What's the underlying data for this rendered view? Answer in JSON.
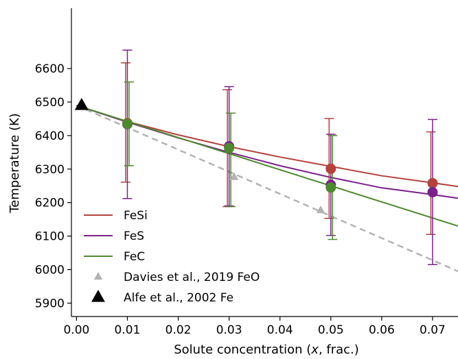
{
  "chart_data": {
    "type": "line",
    "xlabel_prefix": "Solute concentration (",
    "xlabel_var": "x",
    "xlabel_suffix": ", frac.)",
    "ylabel": "Temperature (K)",
    "xlim": [
      -0.001,
      0.075
    ],
    "ylim": [
      5860,
      6780
    ],
    "xticks": [
      0.0,
      0.01,
      0.02,
      0.03,
      0.04,
      0.05,
      0.06,
      0.07
    ],
    "xtick_labels": [
      "0.00",
      "0.01",
      "0.02",
      "0.03",
      "0.04",
      "0.05",
      "0.06",
      "0.07"
    ],
    "yticks": [
      5900,
      6000,
      6100,
      6200,
      6300,
      6400,
      6500,
      6600
    ],
    "ytick_labels": [
      "5900",
      "6000",
      "6100",
      "6200",
      "6300",
      "6400",
      "6500",
      "6600"
    ],
    "grid": false,
    "legend_position": "lower-left",
    "series": [
      {
        "name": "FeSi",
        "color": "#b5413a",
        "fit": [
          [
            0.0,
            6490
          ],
          [
            0.01,
            6442
          ],
          [
            0.02,
            6402
          ],
          [
            0.03,
            6367
          ],
          [
            0.04,
            6336
          ],
          [
            0.05,
            6308
          ],
          [
            0.06,
            6280
          ],
          [
            0.07,
            6259
          ],
          [
            0.075,
            6248
          ]
        ],
        "points": [
          {
            "x": 0.01,
            "y": 6437,
            "lo": 6261,
            "hi": 6617
          },
          {
            "x": 0.03,
            "y": 6365,
            "lo": 6188,
            "hi": 6537
          },
          {
            "x": 0.05,
            "y": 6301,
            "lo": 6153,
            "hi": 6451
          },
          {
            "x": 0.07,
            "y": 6258,
            "lo": 6105,
            "hi": 6411
          }
        ]
      },
      {
        "name": "FeS",
        "color": "#7b1f8c",
        "fit": [
          [
            0.0,
            6490
          ],
          [
            0.01,
            6440
          ],
          [
            0.02,
            6393
          ],
          [
            0.03,
            6350
          ],
          [
            0.04,
            6310
          ],
          [
            0.05,
            6275
          ],
          [
            0.06,
            6244
          ],
          [
            0.07,
            6224
          ],
          [
            0.075,
            6213
          ]
        ],
        "points": [
          {
            "x": 0.01,
            "y": 6434,
            "lo": 6212,
            "hi": 6655
          },
          {
            "x": 0.03,
            "y": 6368,
            "lo": 6190,
            "hi": 6546
          },
          {
            "x": 0.05,
            "y": 6253,
            "lo": 6102,
            "hi": 6404
          },
          {
            "x": 0.07,
            "y": 6231,
            "lo": 6015,
            "hi": 6448
          }
        ]
      },
      {
        "name": "FeC",
        "color": "#4d8a2e",
        "fit": [
          [
            0.0,
            6490
          ],
          [
            0.075,
            6130
          ]
        ],
        "points": [
          {
            "x": 0.01,
            "y": 6435,
            "lo": 6310,
            "hi": 6560
          },
          {
            "x": 0.03,
            "y": 6363,
            "lo": 6188,
            "hi": 6467
          },
          {
            "x": 0.05,
            "y": 6245,
            "lo": 6090,
            "hi": 6400
          }
        ]
      }
    ],
    "reference_series": [
      {
        "name": "Davies et al., 2019 FeO",
        "color": "#b3b3b3",
        "marker": "triangle",
        "line": [
          [
            0.0,
            6490
          ],
          [
            0.075,
            5995
          ]
        ],
        "points": [
          {
            "x": 0.031,
            "y": 6276
          },
          {
            "x": 0.048,
            "y": 6177
          }
        ]
      },
      {
        "name": "Alfe et al., 2002 Fe",
        "color": "#000000",
        "marker": "triangle",
        "points": [
          {
            "x": 0.001,
            "y": 6490
          }
        ]
      }
    ]
  }
}
